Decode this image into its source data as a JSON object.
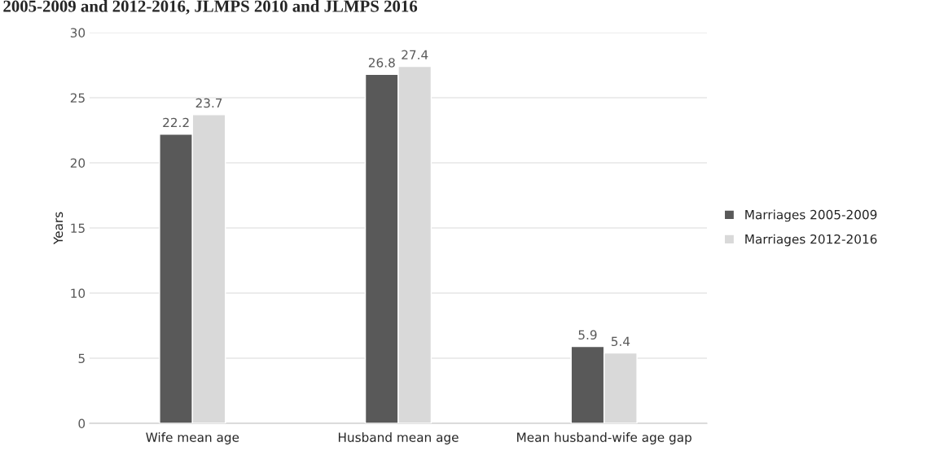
{
  "chart_data": {
    "type": "bar",
    "title": "2005-2009 and 2012-2016, JLMPS 2010 and JLMPS 2016",
    "categories": [
      "Wife mean age",
      "Husband mean age",
      "Mean husband-wife age gap"
    ],
    "series": [
      {
        "name": "Marriages 2005-2009",
        "color": "#595959",
        "values": [
          22.2,
          26.8,
          5.9
        ]
      },
      {
        "name": "Marriages 2012-2016",
        "color": "#d9d9d9",
        "values": [
          23.7,
          27.4,
          5.4
        ]
      }
    ],
    "ylabel": "Years",
    "ylim": [
      0,
      30
    ],
    "yticks": [
      0,
      5,
      10,
      15,
      20,
      25,
      30
    ],
    "grid": "y",
    "legend": "right",
    "data_labels": true
  }
}
